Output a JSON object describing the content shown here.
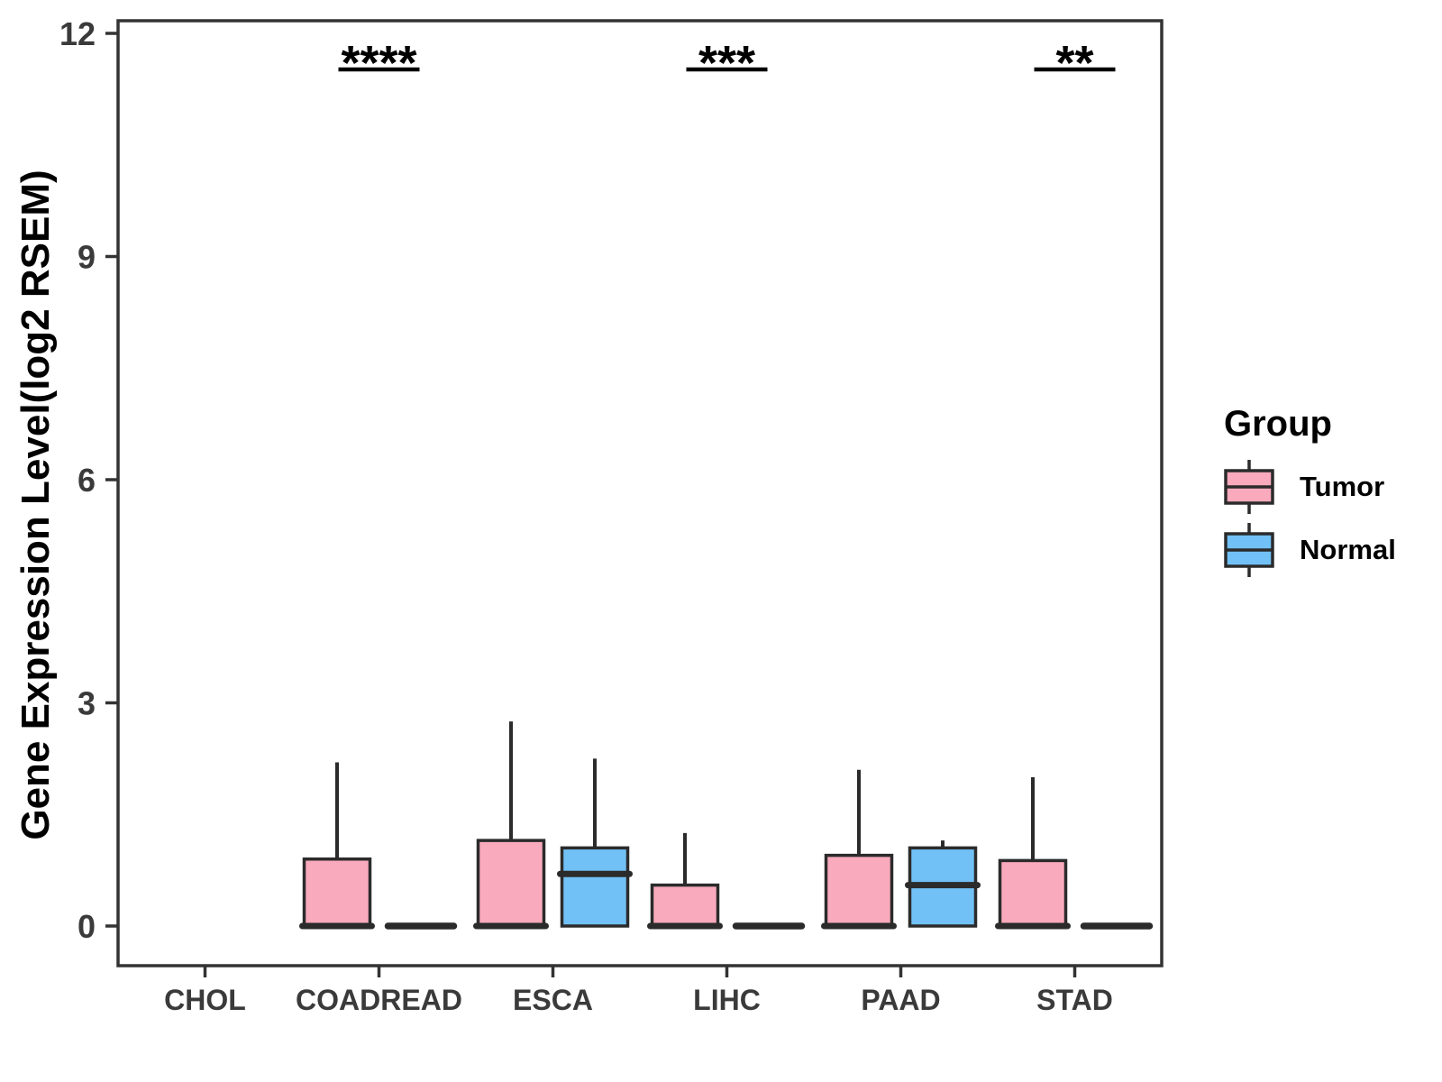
{
  "chart_data": {
    "type": "boxplot",
    "title": "",
    "ylabel": "Gene Expression Level(log2 RSEM)",
    "ylim": [
      0,
      12
    ],
    "yticks": [
      0,
      3,
      6,
      9,
      12
    ],
    "categories": [
      "CHOL",
      "COADREAD",
      "ESCA",
      "LIHC",
      "PAAD",
      "STAD"
    ],
    "grid": "off",
    "legend": {
      "title": "Group",
      "position": "right",
      "entries": [
        {
          "label": "Tumor",
          "color": "#F9AABC"
        },
        {
          "label": "Normal",
          "color": "#72C1F6"
        }
      ]
    },
    "style": {
      "box_border": "#2B2B2B",
      "axis_line": "#333333",
      "axis_text": "#3A3A3A",
      "annotation": "#000000",
      "background": "#FFFFFF"
    },
    "series": [
      {
        "name": "Tumor",
        "color": "#F9AABC",
        "boxes": [
          null,
          {
            "low": 0,
            "q1": 0,
            "median": 0,
            "q3": 0.9,
            "high": 2.2
          },
          {
            "low": 0,
            "q1": 0,
            "median": 0,
            "q3": 1.15,
            "high": 2.75
          },
          {
            "low": 0,
            "q1": 0,
            "median": 0,
            "q3": 0.55,
            "high": 1.25
          },
          {
            "low": 0,
            "q1": 0,
            "median": 0,
            "q3": 0.95,
            "high": 2.1
          },
          {
            "low": 0,
            "q1": 0,
            "median": 0,
            "q3": 0.88,
            "high": 2.0
          }
        ]
      },
      {
        "name": "Normal",
        "color": "#72C1F6",
        "boxes": [
          null,
          {
            "low": 0,
            "q1": 0,
            "median": 0,
            "q3": 0,
            "high": 0
          },
          {
            "low": 0,
            "q1": 0,
            "median": 0.7,
            "q3": 1.05,
            "high": 2.25
          },
          {
            "low": 0,
            "q1": 0,
            "median": 0,
            "q3": 0,
            "high": 0
          },
          {
            "low": 0,
            "q1": 0,
            "median": 0.55,
            "q3": 1.05,
            "high": 1.15
          },
          {
            "low": 0,
            "q1": 0,
            "median": 0,
            "q3": 0,
            "high": 0
          }
        ]
      }
    ],
    "annotations": [
      {
        "category": "COADREAD",
        "text": "****"
      },
      {
        "category": "LIHC",
        "text": "***"
      },
      {
        "category": "STAD",
        "text": "**"
      }
    ]
  }
}
